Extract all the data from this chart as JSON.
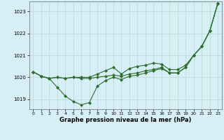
{
  "bg_color": "#d6eef5",
  "grid_color": "#b8d8cc",
  "line_color": "#2d6e2d",
  "xlabel": "Graphe pression niveau de la mer (hPa)",
  "xlim": [
    -0.5,
    23.5
  ],
  "ylim": [
    1018.55,
    1023.45
  ],
  "yticks": [
    1019,
    1020,
    1021,
    1022,
    1023
  ],
  "xticks": [
    0,
    1,
    2,
    3,
    4,
    5,
    6,
    7,
    8,
    9,
    10,
    11,
    12,
    13,
    14,
    15,
    16,
    17,
    18,
    19,
    20,
    21,
    22,
    23
  ],
  "series": [
    [
      1020.25,
      1020.05,
      1019.95,
      1019.55,
      1019.15,
      1018.9,
      1018.75,
      1018.85,
      1019.6,
      1019.85,
      1020.0,
      1019.9,
      1020.05,
      1020.1,
      1020.2,
      1020.3,
      1020.4,
      1020.2,
      1020.2,
      1020.45,
      1021.0,
      1021.4,
      1022.1,
      1023.35
    ],
    [
      1020.25,
      1020.05,
      1019.95,
      1020.0,
      1019.95,
      1020.0,
      1019.95,
      1019.95,
      1020.0,
      1020.05,
      1020.1,
      1020.05,
      1020.15,
      1020.2,
      1020.3,
      1020.35,
      1020.45,
      1020.2,
      1020.2,
      1020.45,
      1021.0,
      1021.4,
      1022.1,
      1023.35
    ],
    [
      1020.25,
      1020.05,
      1019.95,
      1020.0,
      1019.95,
      1020.0,
      1020.0,
      1020.0,
      1020.15,
      1020.3,
      1020.45,
      1020.15,
      1020.4,
      1020.5,
      1020.55,
      1020.65,
      1020.6,
      1020.35,
      1020.35,
      1020.55,
      1021.0,
      1021.4,
      1022.1,
      1023.35
    ]
  ],
  "marker": "D",
  "markersize": 2.0,
  "linewidth": 0.8,
  "xlabel_fontsize": 6.0,
  "tick_fontsize": 5.0
}
